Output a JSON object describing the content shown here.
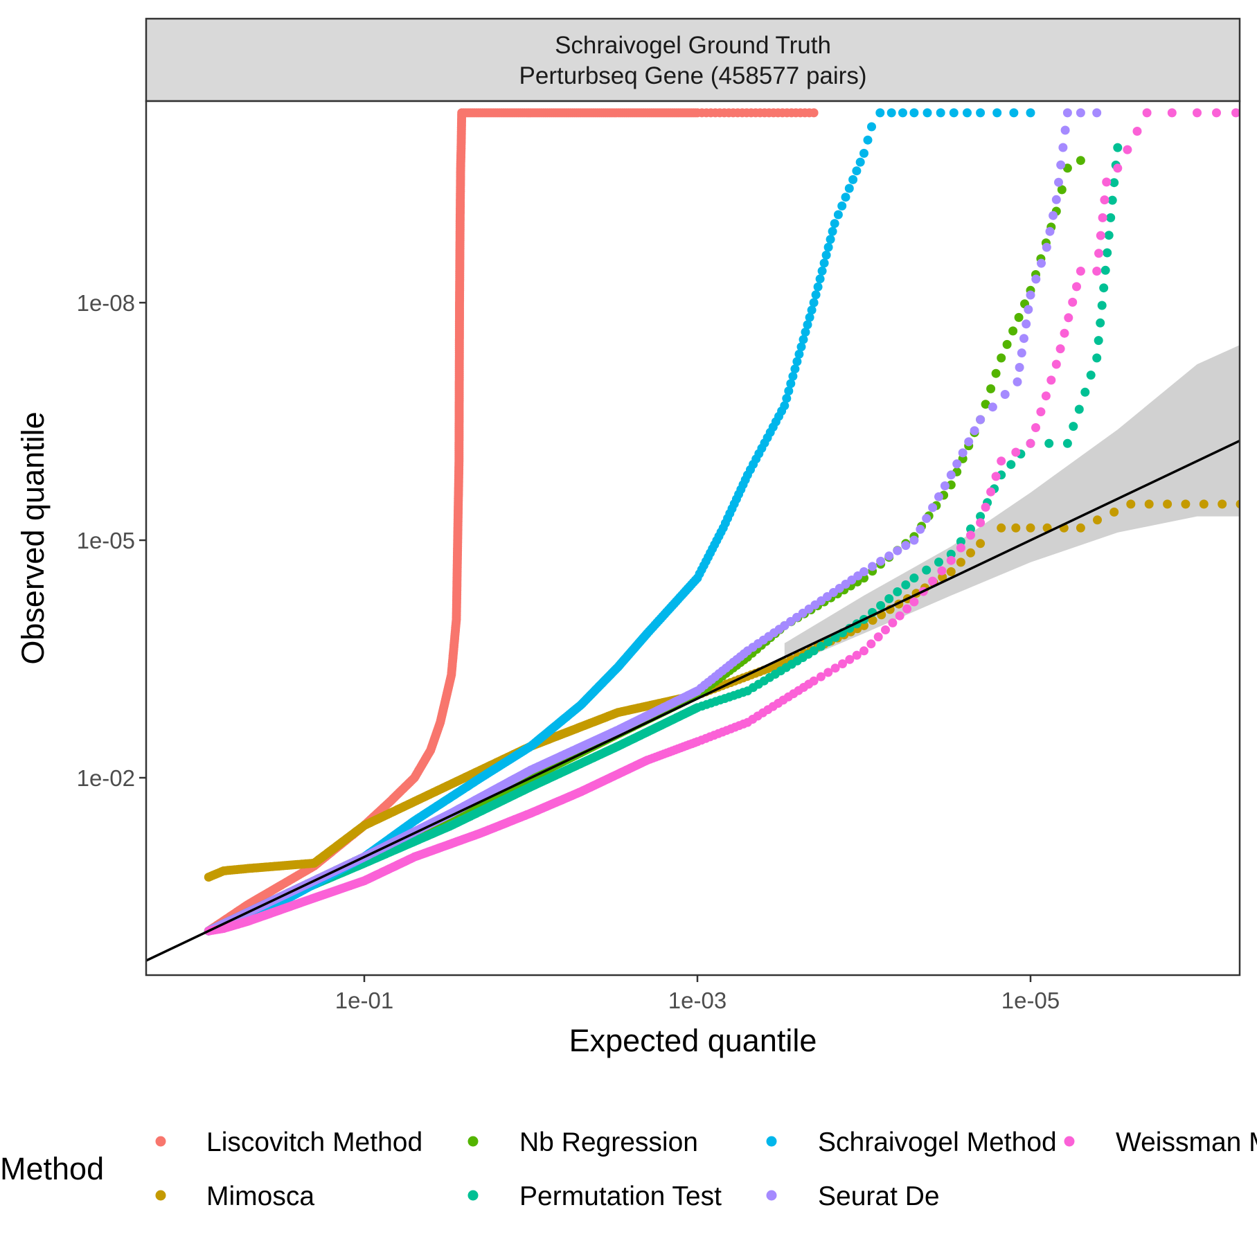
{
  "chart_data": {
    "type": "scatter",
    "facet_title_line1": "Schraivogel Ground Truth",
    "facet_title_line2": "Perturbseq Gene (458577 pairs)",
    "xlabel": "Expected quantile",
    "ylabel": "Observed quantile",
    "x_scale": "reversed log10",
    "y_scale": "reversed log10",
    "xlim": [
      1,
      2e-07
    ],
    "ylim": [
      1,
      3e-11
    ],
    "x_ticks": [
      {
        "value": 0.1,
        "label": "1e-01"
      },
      {
        "value": 0.001,
        "label": "1e-03"
      },
      {
        "value": 1e-05,
        "label": "1e-05"
      }
    ],
    "y_ticks": [
      {
        "value": 1e-08,
        "label": "1e-08"
      },
      {
        "value": 1e-05,
        "label": "1e-05"
      },
      {
        "value": 0.01,
        "label": "1e-02"
      }
    ],
    "grid": false,
    "legend_title": "Method",
    "legend_position": "bottom",
    "series": [
      {
        "name": "Liscovitch Method",
        "color": "#F8766D",
        "points": [
          [
            0.86,
            0.86
          ],
          [
            0.5,
            0.4
          ],
          [
            0.2,
            0.13
          ],
          [
            0.1,
            0.04
          ],
          [
            0.07,
            0.02
          ],
          [
            0.05,
            0.01
          ],
          [
            0.04,
            0.0045
          ],
          [
            0.035,
            0.002
          ],
          [
            0.03,
            0.0005
          ],
          [
            0.028,
            0.0001
          ],
          [
            0.0275,
            1e-05
          ],
          [
            0.027,
            1e-06
          ],
          [
            0.0268,
            1e-08
          ],
          [
            0.0266,
            1e-09
          ],
          [
            0.0264,
            2e-10
          ],
          [
            0.0262,
            1e-10
          ],
          [
            0.026,
            4e-11
          ],
          [
            0.01,
            4e-11
          ],
          [
            0.001,
            4e-11
          ],
          [
            0.0002,
            4e-11
          ]
        ]
      },
      {
        "name": "Mimosca",
        "color": "#C49A00",
        "points": [
          [
            0.86,
            0.18
          ],
          [
            0.7,
            0.15
          ],
          [
            0.5,
            0.14
          ],
          [
            0.2,
            0.12
          ],
          [
            0.1,
            0.04
          ],
          [
            0.05,
            0.02
          ],
          [
            0.02,
            0.008
          ],
          [
            0.01,
            0.004
          ],
          [
            0.003,
            0.0015
          ],
          [
            0.001,
            0.0009
          ],
          [
            0.0003,
            0.00035
          ],
          [
            0.0001,
            0.00012
          ],
          [
            3e-05,
            2.5e-05
          ],
          [
            2e-05,
            1.1e-05
          ],
          [
            1.5e-05,
            7e-06
          ],
          [
            1e-05,
            7e-06
          ],
          [
            5e-06,
            7e-06
          ],
          [
            2.5e-06,
            3.5e-06
          ],
          [
            2e-07,
            3.5e-06
          ]
        ]
      },
      {
        "name": "Nb Regression",
        "color": "#53B400",
        "points": [
          [
            0.86,
            0.86
          ],
          [
            0.3,
            0.3
          ],
          [
            0.1,
            0.1
          ],
          [
            0.03,
            0.03
          ],
          [
            0.01,
            0.01
          ],
          [
            0.003,
            0.0028
          ],
          [
            0.001,
            0.0009
          ],
          [
            0.0005,
            0.0003
          ],
          [
            0.0003,
            0.00012
          ],
          [
            0.0001,
            3e-05
          ],
          [
            5e-05,
            9e-06
          ],
          [
            3e-05,
            2e-06
          ],
          [
            2e-05,
            3e-07
          ],
          [
            1.5e-05,
            5e-08
          ],
          [
            1e-05,
            7e-09
          ],
          [
            7e-06,
            7e-10
          ],
          [
            6e-06,
            2e-10
          ],
          [
            5e-06,
            1.6e-10
          ]
        ]
      },
      {
        "name": "Permutation Test",
        "color": "#00C094",
        "points": [
          [
            0.86,
            0.86
          ],
          [
            0.3,
            0.32
          ],
          [
            0.1,
            0.12
          ],
          [
            0.03,
            0.04
          ],
          [
            0.01,
            0.013
          ],
          [
            0.003,
            0.004
          ],
          [
            0.001,
            0.0013
          ],
          [
            0.0005,
            0.0008
          ],
          [
            0.0002,
            0.00025
          ],
          [
            0.0001,
            0.0001
          ],
          [
            5e-05,
            3e-05
          ],
          [
            3e-05,
            1.5e-05
          ],
          [
            2e-05,
            5e-06
          ],
          [
            1.5e-05,
            1.5e-06
          ],
          [
            1e-05,
            6e-07
          ],
          [
            6e-06,
            6e-07
          ],
          [
            4e-06,
            5e-08
          ],
          [
            3e-06,
            1.1e-10
          ]
        ]
      },
      {
        "name": "Schraivogel Method",
        "color": "#00B6EB",
        "points": [
          [
            0.86,
            0.86
          ],
          [
            0.3,
            0.35
          ],
          [
            0.1,
            0.1
          ],
          [
            0.05,
            0.035
          ],
          [
            0.02,
            0.01
          ],
          [
            0.01,
            0.004
          ],
          [
            0.005,
            0.0012
          ],
          [
            0.003,
            0.0004
          ],
          [
            0.002,
            0.00015
          ],
          [
            0.001,
            3e-05
          ],
          [
            0.0007,
            7e-06
          ],
          [
            0.0005,
            1.5e-06
          ],
          [
            0.0003,
            2e-07
          ],
          [
            0.0002,
            1e-08
          ],
          [
            0.00015,
            1e-09
          ],
          [
            0.0001,
            1.3e-10
          ],
          [
            9e-05,
            6e-11
          ],
          [
            8e-05,
            4e-11
          ],
          [
            5e-05,
            4e-11
          ],
          [
            2e-05,
            4e-11
          ],
          [
            1e-05,
            4e-11
          ]
        ]
      },
      {
        "name": "Seurat De",
        "color": "#A58AFF",
        "points": [
          [
            0.86,
            0.86
          ],
          [
            0.3,
            0.3
          ],
          [
            0.1,
            0.1
          ],
          [
            0.03,
            0.028
          ],
          [
            0.01,
            0.008
          ],
          [
            0.003,
            0.0025
          ],
          [
            0.001,
            0.0008
          ],
          [
            0.0005,
            0.00025
          ],
          [
            0.0003,
            0.00012
          ],
          [
            0.0001,
            2.5e-05
          ],
          [
            5e-05,
            1e-05
          ],
          [
            3e-05,
            1.5e-06
          ],
          [
            2e-05,
            3e-07
          ],
          [
            1.2e-05,
            1e-07
          ],
          [
            1e-05,
            8e-09
          ],
          [
            8e-06,
            2e-09
          ],
          [
            7e-06,
            5e-10
          ],
          [
            6e-06,
            4e-11
          ],
          [
            5e-06,
            4e-11
          ],
          [
            4e-06,
            4e-11
          ]
        ]
      },
      {
        "name": "Weissman Method",
        "color": "#FB61D7",
        "points": [
          [
            0.86,
            0.86
          ],
          [
            0.7,
            0.8
          ],
          [
            0.5,
            0.65
          ],
          [
            0.2,
            0.33
          ],
          [
            0.1,
            0.2
          ],
          [
            0.05,
            0.1
          ],
          [
            0.02,
            0.05
          ],
          [
            0.01,
            0.028
          ],
          [
            0.005,
            0.015
          ],
          [
            0.002,
            0.006
          ],
          [
            0.001,
            0.0035
          ],
          [
            0.0005,
            0.002
          ],
          [
            0.0002,
            0.0006
          ],
          [
            0.0001,
            0.00025
          ],
          [
            5e-05,
            6e-05
          ],
          [
            3e-05,
            1.8e-05
          ],
          [
            2e-05,
            6e-06
          ],
          [
            1.5e-05,
            1e-06
          ],
          [
            1e-05,
            6e-07
          ],
          [
            7e-06,
            6e-08
          ],
          [
            5e-06,
            4e-09
          ],
          [
            4e-06,
            4e-09
          ],
          [
            3.5e-06,
            3e-10
          ],
          [
            3e-06,
            2e-10
          ],
          [
            2e-06,
            4e-11
          ],
          [
            1e-06,
            4e-11
          ],
          [
            2e-07,
            4e-11
          ]
        ]
      }
    ],
    "reference_line": {
      "type": "identity",
      "color": "#000000"
    },
    "confidence_band": {
      "color": "#CCCCCC",
      "upper": [
        [
          0.0003,
          0.0002
        ],
        [
          0.0001,
          5e-05
        ],
        [
          3e-05,
          1.2e-05
        ],
        [
          1e-05,
          2.5e-06
        ],
        [
          3e-06,
          4e-07
        ],
        [
          1e-06,
          6e-08
        ],
        [
          2e-07,
          1.3e-08
        ]
      ],
      "lower": [
        [
          0.0003,
          0.0004
        ],
        [
          0.0001,
          0.00015
        ],
        [
          3e-05,
          5e-05
        ],
        [
          1e-05,
          1.9e-05
        ],
        [
          3e-06,
          8e-06
        ],
        [
          1e-06,
          5e-06
        ],
        [
          2e-07,
          5e-06
        ]
      ]
    }
  }
}
